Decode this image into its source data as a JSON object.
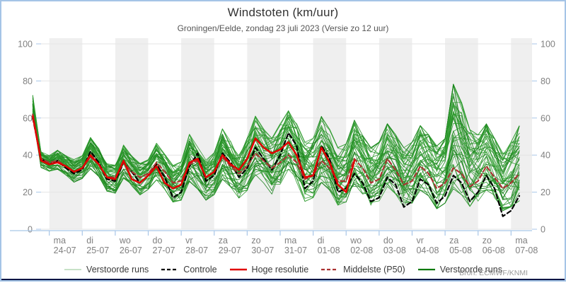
{
  "header": {
    "title": "Windstoten (km/uur)",
    "subtitle": "Groningen/Eelde, zondag 23 juli 2023 (Versie zo 12 uur)"
  },
  "source_label": "Bron: ECMWF/KNMI",
  "y_axis": {
    "min": 0,
    "max": 100,
    "tick_values": [
      0,
      20,
      40,
      60,
      80,
      100
    ],
    "sides": [
      "left",
      "right"
    ]
  },
  "x_axis": {
    "days": [
      {
        "dow": "ma",
        "date": "24-07"
      },
      {
        "dow": "di",
        "date": "25-07"
      },
      {
        "dow": "wo",
        "date": "26-07"
      },
      {
        "dow": "do",
        "date": "27-07"
      },
      {
        "dow": "vr",
        "date": "28-07"
      },
      {
        "dow": "za",
        "date": "29-07"
      },
      {
        "dow": "zo",
        "date": "30-07"
      },
      {
        "dow": "ma",
        "date": "31-07"
      },
      {
        "dow": "di",
        "date": "01-08"
      },
      {
        "dow": "wo",
        "date": "02-08"
      },
      {
        "dow": "do",
        "date": "03-08"
      },
      {
        "dow": "vr",
        "date": "04-08"
      },
      {
        "dow": "za",
        "date": "05-08"
      },
      {
        "dow": "zo",
        "date": "06-08"
      },
      {
        "dow": "ma",
        "date": "07-08"
      }
    ]
  },
  "legend": [
    {
      "label": "Verstoorde runs",
      "color": "#b5d9b5",
      "style": "solid",
      "width": 1.6
    },
    {
      "label": "Controle",
      "color": "#000000",
      "style": "dashed",
      "width": 2.2
    },
    {
      "label": "Hoge resolutie",
      "color": "#e10000",
      "style": "solid",
      "width": 2.6
    },
    {
      "label": "Middelste (P50)",
      "color": "#ab3232",
      "style": "dashed",
      "width": 2.2
    },
    {
      "label": "Verstoorde runs",
      "color": "#0c7a0c",
      "style": "solid",
      "width": 2.2
    }
  ],
  "colors": {
    "band_gray": "#efefef",
    "grid": "#e4e4e4",
    "axis_blue": "#a8c6e8",
    "tick_label": "#808080",
    "ensemble_green_light": "#2e9b2e",
    "ensemble_green_dark": "#17801a",
    "control_black": "#000000",
    "hires_red": "#e10000",
    "p50_darkred": "#ab3232",
    "frame_blue": "#a5c4e6",
    "frame_navy": "#001445"
  },
  "chart_data": {
    "type": "line",
    "title": "Windstoten (km/uur)",
    "xlabel": "",
    "ylabel": "km/uur",
    "ylim": [
      0,
      100
    ],
    "grid": true,
    "legend_position": "bottom",
    "x_start": "2023-07-23 18:00",
    "x_step_hours": 6,
    "n_points": 60,
    "series": [
      {
        "name": "Controle",
        "values": [
          60,
          38,
          35,
          37,
          33,
          30,
          32,
          42,
          36,
          27,
          26,
          36,
          31,
          25,
          29,
          35,
          28,
          17,
          20,
          34,
          41,
          26,
          29,
          41,
          36,
          28,
          33,
          44,
          38,
          32,
          40,
          52,
          45,
          22,
          26,
          45,
          38,
          20,
          22,
          30,
          25,
          15,
          17,
          28,
          24,
          12,
          15,
          27,
          24,
          14,
          18,
          29,
          25,
          15,
          20,
          29,
          22,
          7,
          10,
          18
        ]
      },
      {
        "name": "Hoge resolutie",
        "values": [
          61,
          37,
          35,
          36,
          34,
          31,
          33,
          40,
          35,
          28,
          27,
          37,
          27,
          25,
          29,
          34,
          25,
          22,
          24,
          36,
          38,
          28,
          31,
          40,
          35,
          32,
          38,
          49,
          44,
          41,
          43,
          47,
          40,
          28,
          29,
          44,
          36,
          24,
          20,
          37
        ]
      },
      {
        "name": "Middelste (P50)",
        "values": [
          62,
          38,
          36,
          37,
          34,
          31,
          33,
          39,
          35,
          28,
          28,
          36,
          31,
          28,
          30,
          36,
          31,
          25,
          26,
          35,
          37,
          28,
          31,
          39,
          34,
          30,
          34,
          41,
          37,
          33,
          36,
          40,
          36,
          27,
          29,
          37,
          33,
          26,
          26,
          38,
          33,
          25,
          27,
          38,
          32,
          24,
          26,
          34,
          30,
          22,
          25,
          33,
          30,
          23,
          26,
          34,
          28,
          22,
          25,
          30
        ]
      }
    ],
    "ensemble": {
      "name": "Verstoorde runs",
      "member_count": 48,
      "seed": 42,
      "envelope_min": [
        57,
        33,
        31,
        32,
        29,
        25,
        27,
        32,
        28,
        20,
        19,
        27,
        23,
        18,
        21,
        26,
        21,
        14,
        15,
        25,
        21,
        15,
        18,
        26,
        22,
        16,
        20,
        28,
        24,
        18,
        22,
        28,
        24,
        14,
        16,
        24,
        20,
        12,
        13,
        22,
        18,
        12,
        14,
        22,
        18,
        11,
        13,
        20,
        17,
        10,
        13,
        20,
        17,
        11,
        14,
        20,
        16,
        9,
        11,
        14
      ],
      "envelope_max": [
        75,
        42,
        40,
        43,
        40,
        38,
        40,
        50,
        44,
        36,
        35,
        46,
        40,
        36,
        38,
        47,
        41,
        35,
        37,
        52,
        45,
        38,
        42,
        55,
        48,
        42,
        50,
        62,
        55,
        50,
        58,
        65,
        58,
        48,
        50,
        62,
        55,
        45,
        47,
        60,
        52,
        45,
        48,
        58,
        52,
        45,
        48,
        57,
        52,
        46,
        50,
        80,
        70,
        55,
        52,
        58,
        50,
        42,
        48,
        57
      ]
    }
  }
}
